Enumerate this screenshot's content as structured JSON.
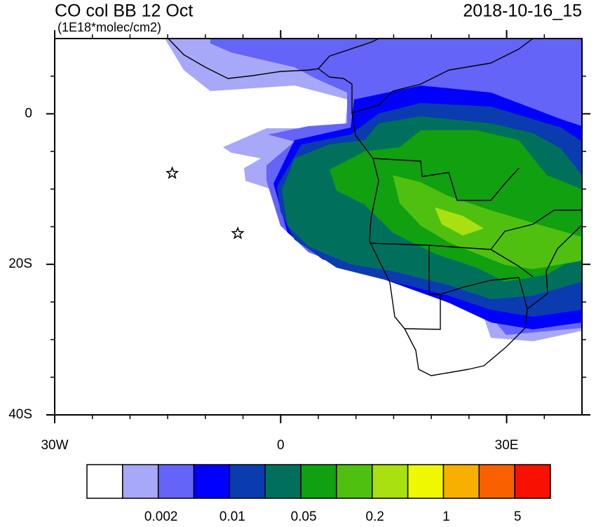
{
  "title": "CO col BB 12 Oct",
  "units": "(1E18*molec/cm2)",
  "timestamp": "2018-10-16_15",
  "map": {
    "xlim": [
      -30,
      40
    ],
    "ylim": [
      -40,
      10
    ],
    "xticks": [
      {
        "value": -30,
        "label": "30W"
      },
      0,
      {
        "value": 30,
        "label": "30E"
      }
    ],
    "yticks": [
      0,
      {
        "value": -20,
        "label": "20S"
      },
      {
        "value": -40,
        "label": "40S"
      }
    ],
    "xminorticks": [
      -25,
      -20,
      -15,
      -10,
      -5,
      5,
      10,
      15,
      20,
      25,
      35
    ],
    "yminorticks": [
      5,
      -5,
      -10,
      -15,
      -25,
      -30,
      -35
    ],
    "markers": [
      {
        "lon": -14.4,
        "lat": -7.9
      },
      {
        "lon": -5.7,
        "lat": -15.9
      }
    ]
  },
  "colorbar": {
    "colors": [
      "#ffffff",
      "#a8a8f8",
      "#6464f8",
      "#0000ff",
      "#0a3cb0",
      "#00705c",
      "#10a010",
      "#50c010",
      "#a8e010",
      "#f0f800",
      "#f8b000",
      "#f86000",
      "#f81000"
    ],
    "labels": [
      0.002,
      0.01,
      0.05,
      0.2,
      1,
      5
    ]
  }
}
